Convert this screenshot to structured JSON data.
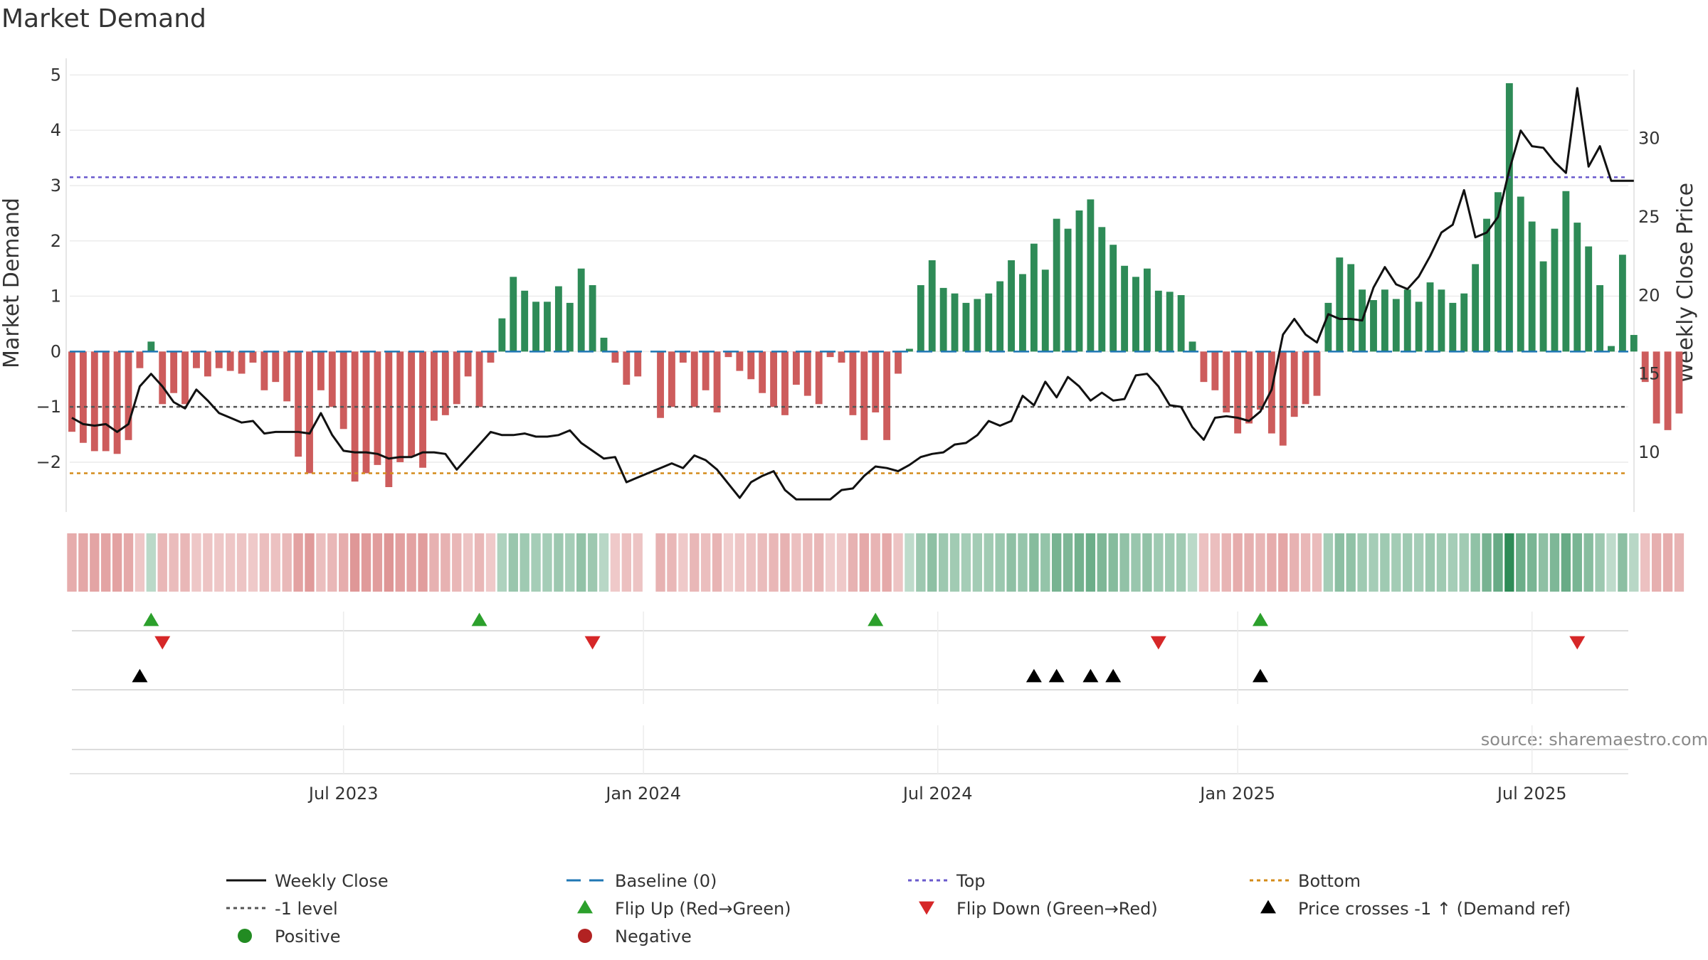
{
  "chart_data": {
    "type": "bar",
    "title": "Market Demand",
    "ylabel": "Market Demand",
    "y2label": "Weekly Close Price",
    "ylim": [
      -2.9,
      5.3
    ],
    "y2lim": [
      6.2,
      35.1
    ],
    "yticks": [
      5,
      4,
      3,
      2,
      1,
      0,
      -1,
      -2
    ],
    "ytick_labels": [
      "5",
      "4",
      "3",
      "2",
      "1",
      "0",
      "−1",
      "−2"
    ],
    "y2ticks": [
      30,
      25,
      20,
      15,
      10
    ],
    "xticks": [
      {
        "label": "Jul 2023",
        "week": 24
      },
      {
        "label": "Jan 2024",
        "week": 50.5
      },
      {
        "label": "Jul 2024",
        "week": 76.5
      },
      {
        "label": "Jan 2025",
        "week": 103
      },
      {
        "label": "Jul 2025",
        "week": 129
      }
    ],
    "weeks": 137,
    "missing_week": 51,
    "demand": [
      -1.45,
      -1.65,
      -1.8,
      -1.8,
      -1.85,
      -1.6,
      -0.3,
      0.18,
      -0.95,
      -0.75,
      -0.95,
      -0.3,
      -0.45,
      -0.3,
      -0.35,
      -0.4,
      -0.2,
      -0.7,
      -0.55,
      -0.9,
      -1.9,
      -2.2,
      -0.7,
      -1.0,
      -1.4,
      -2.35,
      -2.2,
      -2.05,
      -2.45,
      -2.0,
      -1.9,
      -2.1,
      -1.25,
      -1.15,
      -0.95,
      -0.45,
      -1.0,
      -0.2,
      0.6,
      1.35,
      1.1,
      0.9,
      0.9,
      1.18,
      0.88,
      1.5,
      1.2,
      0.25,
      -0.2,
      -0.6,
      -0.45,
      0,
      -1.2,
      -1.0,
      -0.2,
      -1.0,
      -0.7,
      -1.1,
      -0.1,
      -0.35,
      -0.5,
      -0.75,
      -1.0,
      -1.15,
      -0.6,
      -0.8,
      -0.95,
      -0.1,
      -0.2,
      -1.15,
      -1.6,
      -1.1,
      -1.6,
      -0.4,
      0.05,
      1.2,
      1.65,
      1.15,
      1.05,
      0.88,
      0.95,
      1.05,
      1.27,
      1.65,
      1.4,
      1.95,
      1.48,
      2.4,
      2.22,
      2.55,
      2.75,
      2.25,
      1.93,
      1.55,
      1.35,
      1.5,
      1.1,
      1.08,
      1.02,
      0.18,
      -0.55,
      -0.7,
      -1.1,
      -1.48,
      -1.3,
      -1.05,
      -1.48,
      -1.7,
      -1.18,
      -0.95,
      -0.8,
      0.88,
      1.7,
      1.58,
      1.12,
      0.93,
      1.12,
      0.95,
      1.12,
      0.9,
      1.25,
      1.12,
      0.88,
      1.05,
      1.58,
      2.4,
      2.88,
      4.85,
      2.8,
      2.35,
      1.63,
      2.22,
      2.9,
      2.33,
      1.9,
      1.2,
      0.1,
      1.75,
      0.3,
      -0.55,
      -1.3,
      -1.42,
      -1.12
    ],
    "price": [
      12.2,
      11.8,
      11.7,
      11.8,
      11.3,
      11.8,
      14.2,
      15.0,
      14.2,
      13.2,
      12.8,
      14.0,
      13.3,
      12.5,
      12.2,
      11.9,
      12.0,
      11.2,
      11.3,
      11.3,
      11.3,
      11.2,
      12.5,
      11.1,
      10.1,
      10.0,
      10.0,
      9.9,
      9.6,
      9.7,
      9.7,
      10.0,
      10.0,
      9.9,
      8.9,
      9.7,
      10.5,
      11.3,
      11.1,
      11.1,
      11.2,
      11.0,
      11.0,
      11.1,
      11.4,
      10.6,
      10.1,
      9.6,
      9.7,
      8.1,
      8.4,
      8.7,
      9.0,
      9.3,
      9.0,
      9.8,
      9.5,
      8.9,
      8.0,
      7.1,
      8.1,
      8.5,
      8.8,
      7.6,
      7.0,
      7.0,
      7.0,
      7.0,
      7.6,
      7.7,
      8.5,
      9.1,
      9.0,
      8.8,
      9.2,
      9.7,
      9.9,
      10.0,
      10.5,
      10.6,
      11.1,
      12.0,
      11.7,
      12.0,
      13.6,
      13.0,
      14.5,
      13.5,
      14.8,
      14.2,
      13.3,
      13.8,
      13.3,
      13.4,
      14.9,
      15.0,
      14.2,
      13.0,
      12.9,
      11.6,
      10.8,
      12.2,
      12.3,
      12.2,
      12.0,
      12.6,
      14.0,
      17.5,
      18.5,
      17.5,
      17.0,
      18.8,
      18.5,
      18.5,
      18.4,
      20.5,
      21.8,
      20.7,
      20.4,
      21.2,
      22.5,
      24.0,
      24.5,
      26.7,
      23.7,
      24.0,
      25.0,
      28.0,
      30.5,
      29.5,
      29.4,
      28.5,
      27.8,
      33.2,
      28.2,
      29.5,
      27.3,
      27.3,
      27.3
    ],
    "legend": [
      {
        "label": "Weekly Close",
        "symbol": "line-solid",
        "color": "#111111"
      },
      {
        "label": "Baseline (0)",
        "symbol": "line-dash",
        "color": "#1f77b4"
      },
      {
        "label": "Top",
        "symbol": "line-dot",
        "color": "#6a5acd"
      },
      {
        "label": "Bottom",
        "symbol": "line-dot",
        "color": "#d48b1a"
      },
      {
        "label": "-1 level",
        "symbol": "line-dot",
        "color": "#555555"
      },
      {
        "label": "Flip Up (Red→Green)",
        "symbol": "tri-up",
        "color": "#2ca02c"
      },
      {
        "label": "Flip Down (Green→Red)",
        "symbol": "tri-down",
        "color": "#d62728"
      },
      {
        "label": "Price crosses -1 ↑ (Demand ref)",
        "symbol": "tri-up",
        "color": "#000000"
      },
      {
        "label": "Positive",
        "symbol": "circle",
        "color": "#228b22"
      },
      {
        "label": "Negative",
        "symbol": "circle",
        "color": "#b22222"
      }
    ],
    "flip_up_weeks": [
      7,
      36,
      71,
      105
    ],
    "flip_down_weeks": [
      8,
      46,
      96,
      133
    ],
    "price_cross_weeks": [
      6,
      85,
      87,
      90,
      92,
      105
    ],
    "top_line": 3.15,
    "bottom_line": -2.2,
    "minus_one_line": -1
  },
  "source": "source: sharemaestro.com",
  "colors": {
    "bar_pos": "#2e8b57",
    "bar_neg": "#cd5c5c",
    "price": "#111111",
    "baseline": "#1f77b4",
    "top": "#6a5acd",
    "bottom": "#d48b1a",
    "minus_one": "#555555",
    "grid": "#ececec",
    "axis": "#dddddd"
  }
}
